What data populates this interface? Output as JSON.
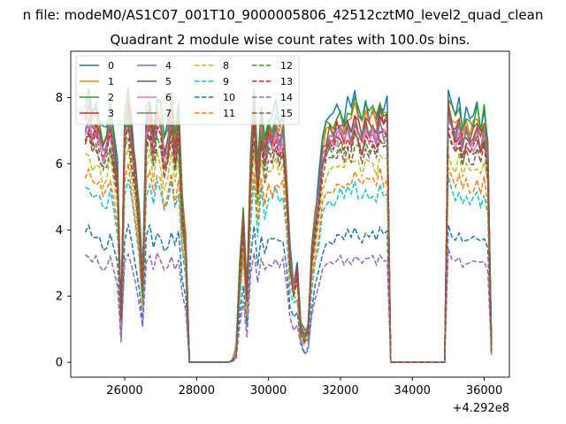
{
  "header": {
    "suptitle": "n file: modeM0/AS1C07_001T10_9000005806_42512cztM0_level2_quad_clean",
    "title": "Quadrant 2 module wise count rates with 100.0s bins."
  },
  "chart_data": {
    "type": "line",
    "title": "Quadrant 2 module wise count rates with 100.0s bins.",
    "xlabel": "",
    "ylabel": "",
    "x_offset_label": "+4.292e8",
    "xlim": [
      24500,
      36700
    ],
    "ylim": [
      -0.45,
      9.4
    ],
    "xticks": [
      26000,
      28000,
      30000,
      32000,
      34000,
      36000
    ],
    "xtick_labels": [
      "26000",
      "28000",
      "30000",
      "32000",
      "34000",
      "36000"
    ],
    "yticks": [
      0,
      2,
      4,
      6,
      8
    ],
    "ytick_labels": [
      "0",
      "2",
      "4",
      "6",
      "8"
    ],
    "grid": false,
    "legend": {
      "placement": "top-left",
      "columns": 4
    },
    "profile": {
      "x_start": 24900,
      "x_step": 100,
      "values": [
        0.93,
        0.96,
        0.9,
        0.92,
        0.88,
        0.82,
        0.85,
        0.93,
        0.83,
        0.7,
        0.15,
        0.9,
        0.98,
        0.85,
        0.72,
        0.55,
        0.3,
        0.9,
        0.96,
        0.85,
        0.95,
        0.92,
        0.8,
        0.85,
        0.96,
        0.82,
        0.92,
        0.6,
        0.45,
        0.0,
        0.0,
        0.0,
        0.0,
        0.0,
        0.0,
        0.0,
        0.0,
        0.0,
        0.0,
        0.0,
        0.0,
        0.01,
        0.05,
        0.35,
        0.55,
        0.25,
        0.75,
        0.98,
        0.7,
        0.92,
        0.8,
        0.88,
        0.86,
        0.92,
        0.85,
        0.9,
        0.7,
        0.4,
        0.3,
        0.35,
        0.14,
        0.1,
        0.12,
        0.4,
        0.55,
        0.65,
        0.8,
        0.85,
        0.88,
        0.87,
        0.9,
        0.92,
        0.88,
        0.93,
        0.89,
        0.95,
        0.91,
        0.87,
        0.94,
        0.9,
        0.92,
        0.88,
        0.95,
        0.91,
        0.93,
        0.0,
        0.0,
        0.0,
        0.0,
        0.0,
        0.0,
        0.0,
        0.0,
        0.0,
        0.0,
        0.0,
        0.0,
        0.0,
        0.0,
        0.0,
        0.0,
        0.98,
        0.92,
        0.88,
        0.93,
        0.85,
        0.9,
        0.87,
        0.88,
        0.91,
        0.86,
        0.92,
        0.8,
        0.06
      ]
    },
    "series": [
      {
        "name": "0",
        "level": 8.4,
        "color": "#1f77b4",
        "dash": "solid"
      },
      {
        "name": "1",
        "level": 8.1,
        "color": "#ff7f0e",
        "dash": "solid"
      },
      {
        "name": "2",
        "level": 8.3,
        "color": "#2ca02c",
        "dash": "solid"
      },
      {
        "name": "3",
        "level": 7.8,
        "color": "#d62728",
        "dash": "solid"
      },
      {
        "name": "4",
        "level": 7.6,
        "color": "#9467bd",
        "dash": "solid"
      },
      {
        "name": "5",
        "level": 7.9,
        "color": "#8c564b",
        "dash": "solid"
      },
      {
        "name": "6",
        "level": 7.5,
        "color": "#e377c2",
        "dash": "solid"
      },
      {
        "name": "7",
        "level": 7.7,
        "color": "#7f7f7f",
        "dash": "solid"
      },
      {
        "name": "8",
        "level": 6.6,
        "color": "#bcbd22",
        "dash": "dashed"
      },
      {
        "name": "9",
        "level": 5.6,
        "color": "#17becf",
        "dash": "dashed"
      },
      {
        "name": "10",
        "level": 4.2,
        "color": "#1f77b4",
        "dash": "dashed"
      },
      {
        "name": "11",
        "level": 6.0,
        "color": "#ff7f0e",
        "dash": "dashed"
      },
      {
        "name": "12",
        "level": 7.2,
        "color": "#2ca02c",
        "dash": "dashed"
      },
      {
        "name": "13",
        "level": 7.4,
        "color": "#d62728",
        "dash": "dashed"
      },
      {
        "name": "14",
        "level": 3.4,
        "color": "#9467bd",
        "dash": "dashed"
      },
      {
        "name": "15",
        "level": 7.0,
        "color": "#8c564b",
        "dash": "dashed"
      }
    ]
  }
}
